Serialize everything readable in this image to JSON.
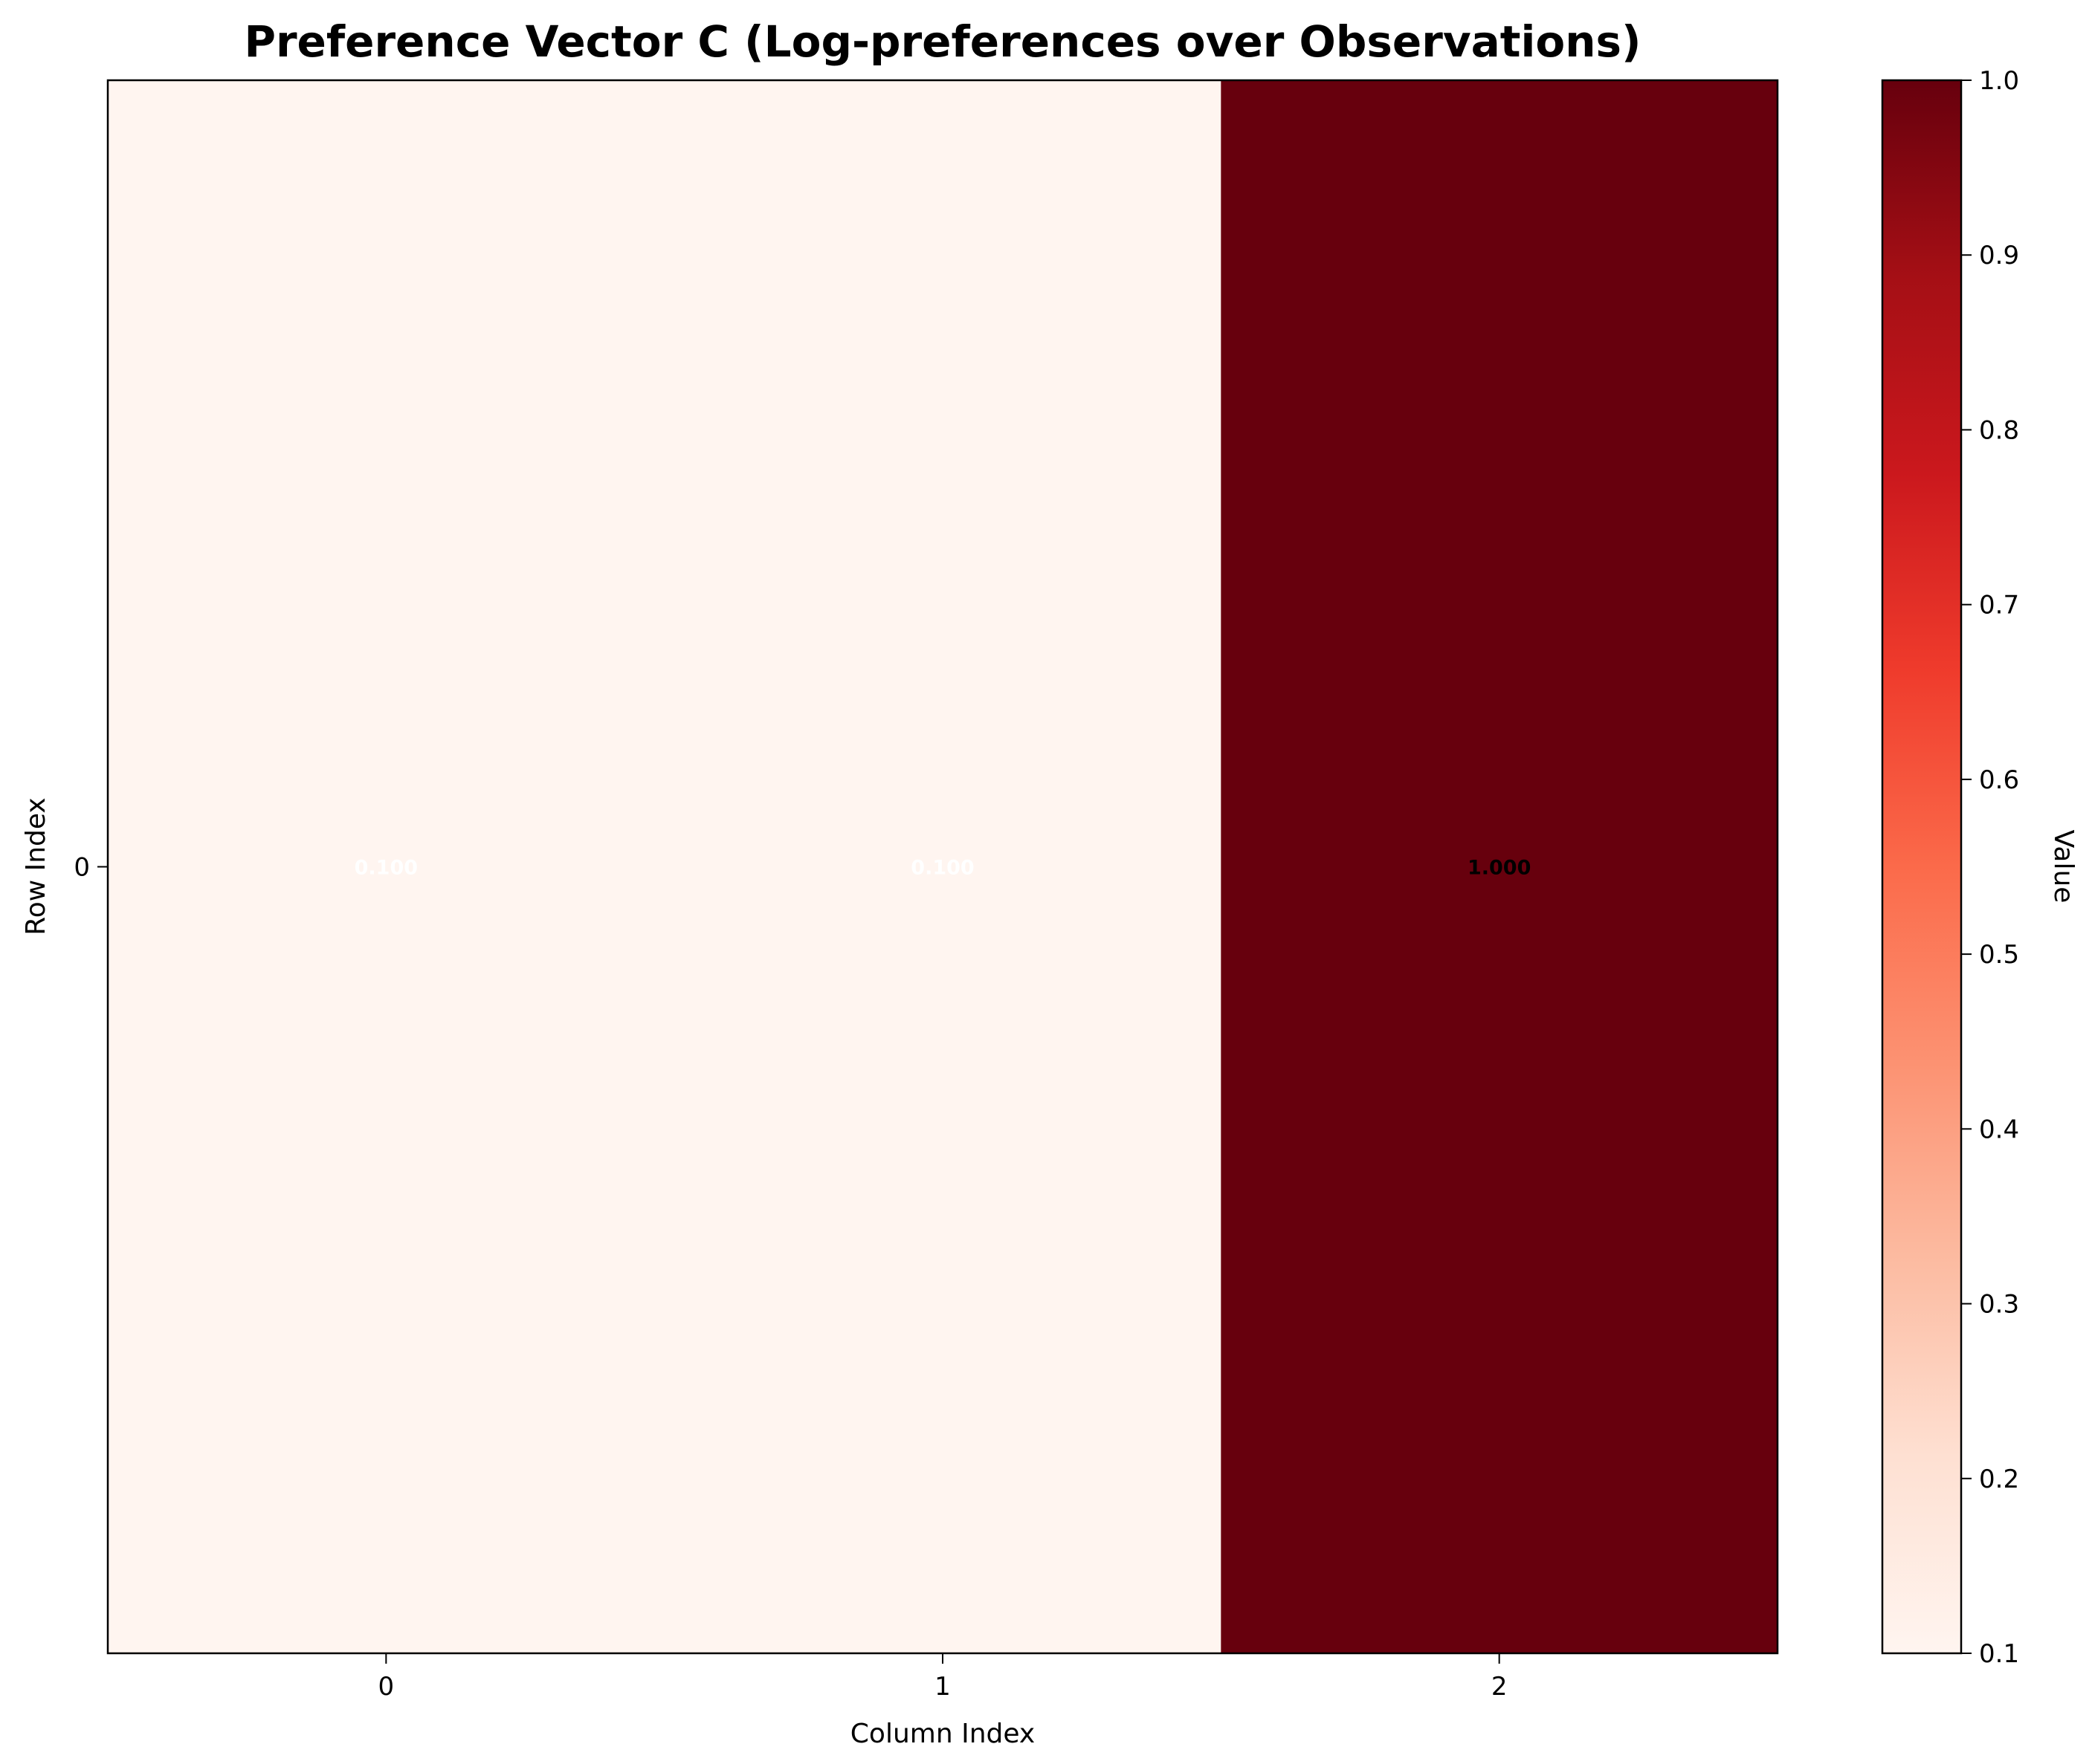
{
  "chart_data": {
    "type": "heatmap",
    "title": "Preference Vector C (Log-preferences over Observations)",
    "xlabel": "Column Index",
    "ylabel": "Row Index",
    "x_ticks": [
      "0",
      "1",
      "2"
    ],
    "y_ticks": [
      "0"
    ],
    "values": [
      [
        0.1,
        0.1,
        1.0
      ]
    ],
    "cell_labels": [
      [
        "0.100",
        "0.100",
        "1.000"
      ]
    ],
    "colormap": "Reds",
    "colorbar": {
      "label": "Value",
      "range": [
        0.1,
        1.0
      ],
      "ticks": [
        "0.1",
        "0.2",
        "0.3",
        "0.4",
        "0.5",
        "0.6",
        "0.7",
        "0.8",
        "0.9",
        "1.0"
      ]
    }
  }
}
